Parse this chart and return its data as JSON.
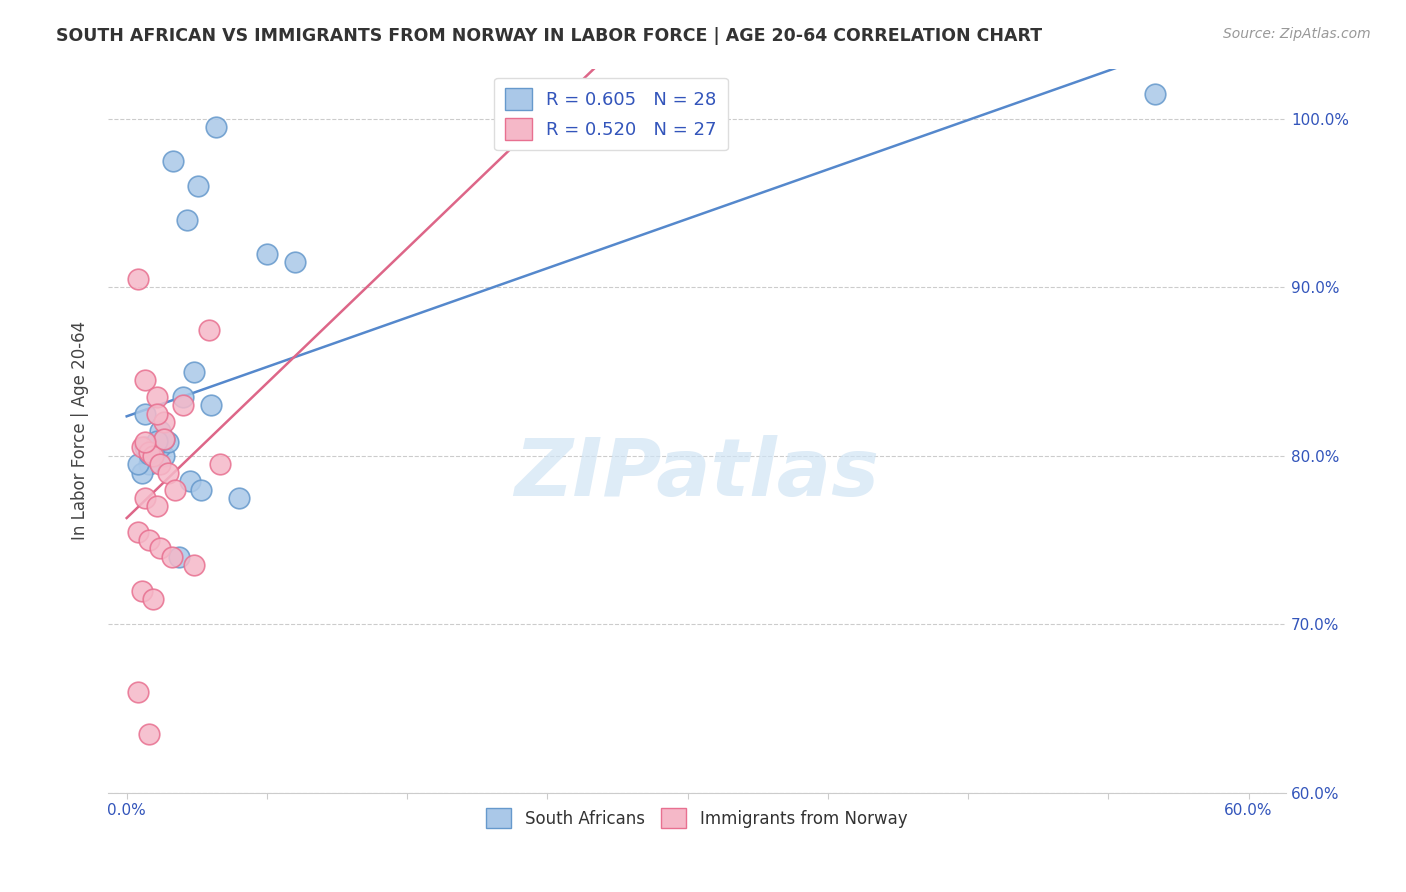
{
  "title": "SOUTH AFRICAN VS IMMIGRANTS FROM NORWAY IN LABOR FORCE | AGE 20-64 CORRELATION CHART",
  "source": "Source: ZipAtlas.com",
  "ylabel": "In Labor Force | Age 20-64",
  "y_ticks": [
    60.0,
    70.0,
    80.0,
    90.0,
    100.0
  ],
  "x_ticks": [
    0.0,
    7.5,
    15.0,
    22.5,
    30.0,
    37.5,
    45.0,
    52.5,
    60.0
  ],
  "xlim": [
    -1.0,
    62.0
  ],
  "ylim": [
    60.0,
    103.0
  ],
  "blue_R": 0.605,
  "blue_N": 28,
  "pink_R": 0.52,
  "pink_N": 27,
  "blue_color": "#aac8e8",
  "pink_color": "#f5b8c8",
  "blue_edge_color": "#6699cc",
  "pink_edge_color": "#e87090",
  "blue_line_color": "#5588cc",
  "pink_line_color": "#dd6688",
  "legend_R_color": "#3355bb",
  "legend_N_color": "#3355bb",
  "title_color": "#333333",
  "source_color": "#999999",
  "axis_tick_color": "#3355bb",
  "grid_color": "#cccccc",
  "watermark_color": "#d0e4f4",
  "blue_scatter_x": [
    2.5,
    3.2,
    4.8,
    3.8,
    7.5,
    9.0,
    1.0,
    1.5,
    2.0,
    1.8,
    2.2,
    1.4,
    1.2,
    0.8,
    3.4,
    4.0,
    6.0,
    0.6,
    2.8,
    1.0,
    1.8,
    2.0,
    1.6,
    1.2,
    3.0,
    3.6,
    4.5,
    55.0
  ],
  "blue_scatter_y": [
    97.5,
    94.0,
    99.5,
    96.0,
    92.0,
    91.5,
    80.5,
    80.2,
    80.0,
    80.5,
    80.8,
    80.3,
    79.5,
    79.0,
    78.5,
    78.0,
    77.5,
    79.5,
    74.0,
    82.5,
    81.5,
    81.0,
    80.9,
    80.1,
    83.5,
    85.0,
    83.0,
    101.5
  ],
  "pink_scatter_x": [
    0.6,
    1.0,
    1.6,
    2.0,
    3.0,
    0.8,
    1.2,
    1.4,
    1.8,
    2.2,
    2.6,
    1.0,
    1.6,
    5.0,
    0.6,
    1.2,
    1.8,
    2.4,
    3.6,
    0.8,
    1.4,
    2.0,
    1.0,
    1.6,
    4.4,
    0.6,
    1.2
  ],
  "pink_scatter_y": [
    90.5,
    84.5,
    83.5,
    82.0,
    83.0,
    80.5,
    80.2,
    80.0,
    79.5,
    79.0,
    78.0,
    77.5,
    77.0,
    79.5,
    75.5,
    75.0,
    74.5,
    74.0,
    73.5,
    72.0,
    71.5,
    81.0,
    80.8,
    82.5,
    87.5,
    66.0,
    63.5
  ]
}
